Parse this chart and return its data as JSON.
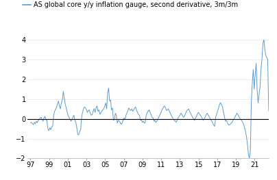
{
  "title": "AS global core y/y inflation gauge, second derivative, 3m/3m",
  "line_color": "#5B9BD5",
  "zero_line_color": "#000000",
  "background_color": "#ffffff",
  "ylim": [
    -2.0,
    4.0
  ],
  "yticks": [
    -2.0,
    -1.0,
    0.0,
    1.0,
    2.0,
    3.0,
    4.0
  ],
  "xtick_labels": [
    "97",
    "99",
    "01",
    "03",
    "05",
    "07",
    "09",
    "11",
    "13",
    "15",
    "17",
    "19",
    "21"
  ],
  "x_start_year": 1997.0,
  "x_end_year": 2022.5,
  "title_fontsize": 7.0,
  "tick_fontsize": 7.0,
  "line_width": 0.7,
  "y_data": [
    -0.2,
    -0.18,
    -0.25,
    -0.3,
    -0.18,
    -0.25,
    -0.12,
    -0.2,
    -0.08,
    -0.04,
    0.04,
    0.08,
    -0.04,
    -0.12,
    0.04,
    0.12,
    -0.04,
    -0.08,
    -0.5,
    -0.6,
    -0.45,
    -0.55,
    -0.4,
    -0.38,
    0.18,
    0.38,
    0.48,
    0.58,
    0.75,
    0.9,
    0.65,
    0.5,
    0.8,
    0.95,
    1.38,
    1.05,
    0.75,
    0.55,
    0.35,
    0.15,
    0.08,
    -0.04,
    -0.12,
    -0.04,
    0.08,
    0.18,
    -0.08,
    -0.18,
    -0.45,
    -0.8,
    -0.8,
    -0.65,
    -0.55,
    0.08,
    0.32,
    0.52,
    0.6,
    0.55,
    0.45,
    0.32,
    0.42,
    0.45,
    0.28,
    0.18,
    0.22,
    0.38,
    0.52,
    0.32,
    0.55,
    0.65,
    0.38,
    0.45,
    0.22,
    0.32,
    0.38,
    0.45,
    0.5,
    0.65,
    0.8,
    0.5,
    1.3,
    1.55,
    0.9,
    0.95,
    0.45,
    0.55,
    -0.08,
    -0.04,
    0.28,
    0.18,
    -0.22,
    -0.08,
    -0.12,
    -0.18,
    -0.28,
    -0.22,
    -0.08,
    0.04,
    -0.04,
    0.18,
    0.28,
    0.42,
    0.55,
    0.45,
    0.42,
    0.5,
    0.38,
    0.45,
    0.55,
    0.6,
    0.42,
    0.32,
    0.22,
    0.18,
    -0.08,
    -0.04,
    -0.18,
    -0.12,
    -0.22,
    -0.18,
    0.18,
    0.32,
    0.38,
    0.45,
    0.32,
    0.22,
    0.08,
    0.04,
    -0.12,
    -0.08,
    -0.18,
    -0.12,
    -0.04,
    0.08,
    0.18,
    0.28,
    0.42,
    0.5,
    0.6,
    0.65,
    0.55,
    0.42,
    0.45,
    0.5,
    0.38,
    0.28,
    0.18,
    0.08,
    0.0,
    -0.08,
    -0.12,
    -0.18,
    -0.08,
    0.04,
    0.12,
    0.18,
    0.28,
    0.22,
    0.12,
    0.08,
    0.18,
    0.28,
    0.42,
    0.45,
    0.5,
    0.38,
    0.28,
    0.18,
    0.08,
    0.0,
    -0.08,
    0.04,
    0.12,
    0.22,
    0.32,
    0.28,
    0.18,
    0.12,
    0.04,
    -0.08,
    0.0,
    0.08,
    0.18,
    0.28,
    0.22,
    0.12,
    0.04,
    -0.04,
    -0.12,
    -0.22,
    -0.32,
    -0.38,
    0.08,
    0.22,
    0.38,
    0.55,
    0.72,
    0.82,
    0.72,
    0.62,
    0.35,
    0.15,
    -0.12,
    -0.08,
    -0.18,
    -0.28,
    -0.32,
    -0.28,
    -0.22,
    -0.18,
    -0.08,
    0.0,
    0.08,
    0.18,
    0.28,
    0.22,
    0.12,
    0.04,
    -0.04,
    -0.08,
    -0.18,
    -0.28,
    -0.45,
    -0.65,
    -0.9,
    -1.3,
    -1.8,
    -2.0,
    -1.6,
    0.8,
    1.8,
    2.5,
    1.5,
    2.2,
    2.8,
    1.5,
    0.8,
    1.2,
    1.6,
    2.5,
    3.0,
    3.8,
    4.0,
    3.5,
    3.2,
    3.1,
    3.0,
    0.4
  ]
}
